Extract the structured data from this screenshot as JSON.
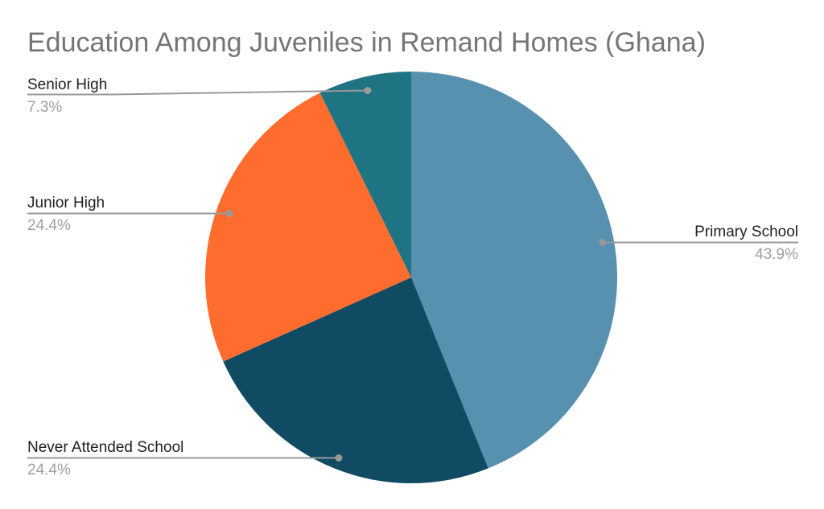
{
  "chart_data": {
    "type": "pie",
    "title": "Education Among Juveniles in Remand Homes (Ghana)",
    "direction": "clockwise",
    "start_angle_deg": 0,
    "legend_position": "outside-callout-labels",
    "grid": false,
    "background_color": "#ffffff",
    "title_color": "#757575",
    "label_text_color": "#212121",
    "percent_text_color": "#9e9e9e",
    "leader_line_color": "#999999",
    "slices": [
      {
        "label": "Primary School",
        "value": 43.9,
        "pct_label": "43.9%",
        "color": "#5890AF"
      },
      {
        "label": "Never Attended School",
        "value": 24.4,
        "pct_label": "24.4%",
        "color": "#114A63"
      },
      {
        "label": "Junior High",
        "value": 24.4,
        "pct_label": "24.4%",
        "color": "#FF6D2E"
      },
      {
        "label": "Senior High",
        "value": 7.3,
        "pct_label": "7.3%",
        "color": "#1F7484"
      }
    ]
  }
}
